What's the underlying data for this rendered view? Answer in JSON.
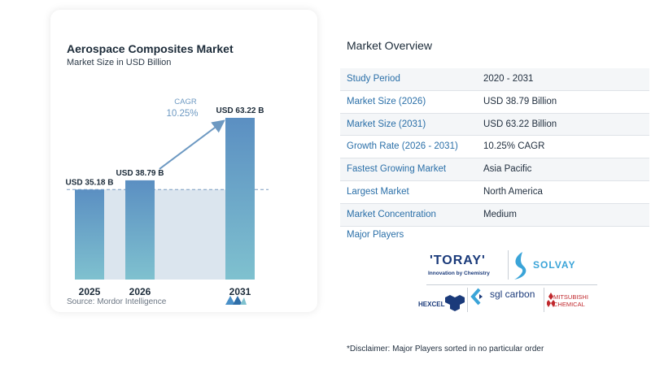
{
  "chart_data": {
    "type": "bar",
    "title": "Aerospace Composites Market",
    "subtitle": "Market Size in USD Billion",
    "categories": [
      "2025",
      "2026",
      "2031"
    ],
    "values": [
      35.18,
      38.79,
      63.22
    ],
    "value_labels": [
      "USD 35.18 B",
      "USD 38.79 B",
      "USD 63.22 B"
    ],
    "cagr_label": "CAGR",
    "cagr_value": "10.25%",
    "xlabel": "",
    "ylabel": "",
    "grid": false,
    "colors": {
      "bar_top": "#5b8fc2",
      "bar_bottom": "#7fc1cf",
      "band": "#dbe5ee",
      "arrow": "#6d99c2",
      "cagr_text": "#6d99c2"
    }
  },
  "source": "Source: Mordor Intelligence",
  "overview": {
    "title": "Market Overview",
    "rows": [
      {
        "label": "Study Period",
        "value": "2020 - 2031"
      },
      {
        "label": "Market Size (2026)",
        "value": "USD 38.79 Billion"
      },
      {
        "label": "Market Size (2031)",
        "value": "USD 63.22 Billion"
      },
      {
        "label": "Growth Rate (2026 - 2031)",
        "value": "10.25% CAGR"
      },
      {
        "label": "Fastest Growing Market",
        "value": "Asia Pacific"
      },
      {
        "label": "Largest Market",
        "value": "North America"
      },
      {
        "label": "Market Concentration",
        "value": "Medium"
      }
    ],
    "players_title": "Major Players"
  },
  "players": {
    "toray": "'TORAY'",
    "toray_tag": "Innovation by Chemistry",
    "solvay": "SOLVAY",
    "hexcel": "HEXCEL",
    "sgl": "sgl carbon",
    "mitsubishi": "MITSUBISHI CHEMICAL"
  },
  "disclaimer": "*Disclaimer: Major Players sorted in no particular order"
}
